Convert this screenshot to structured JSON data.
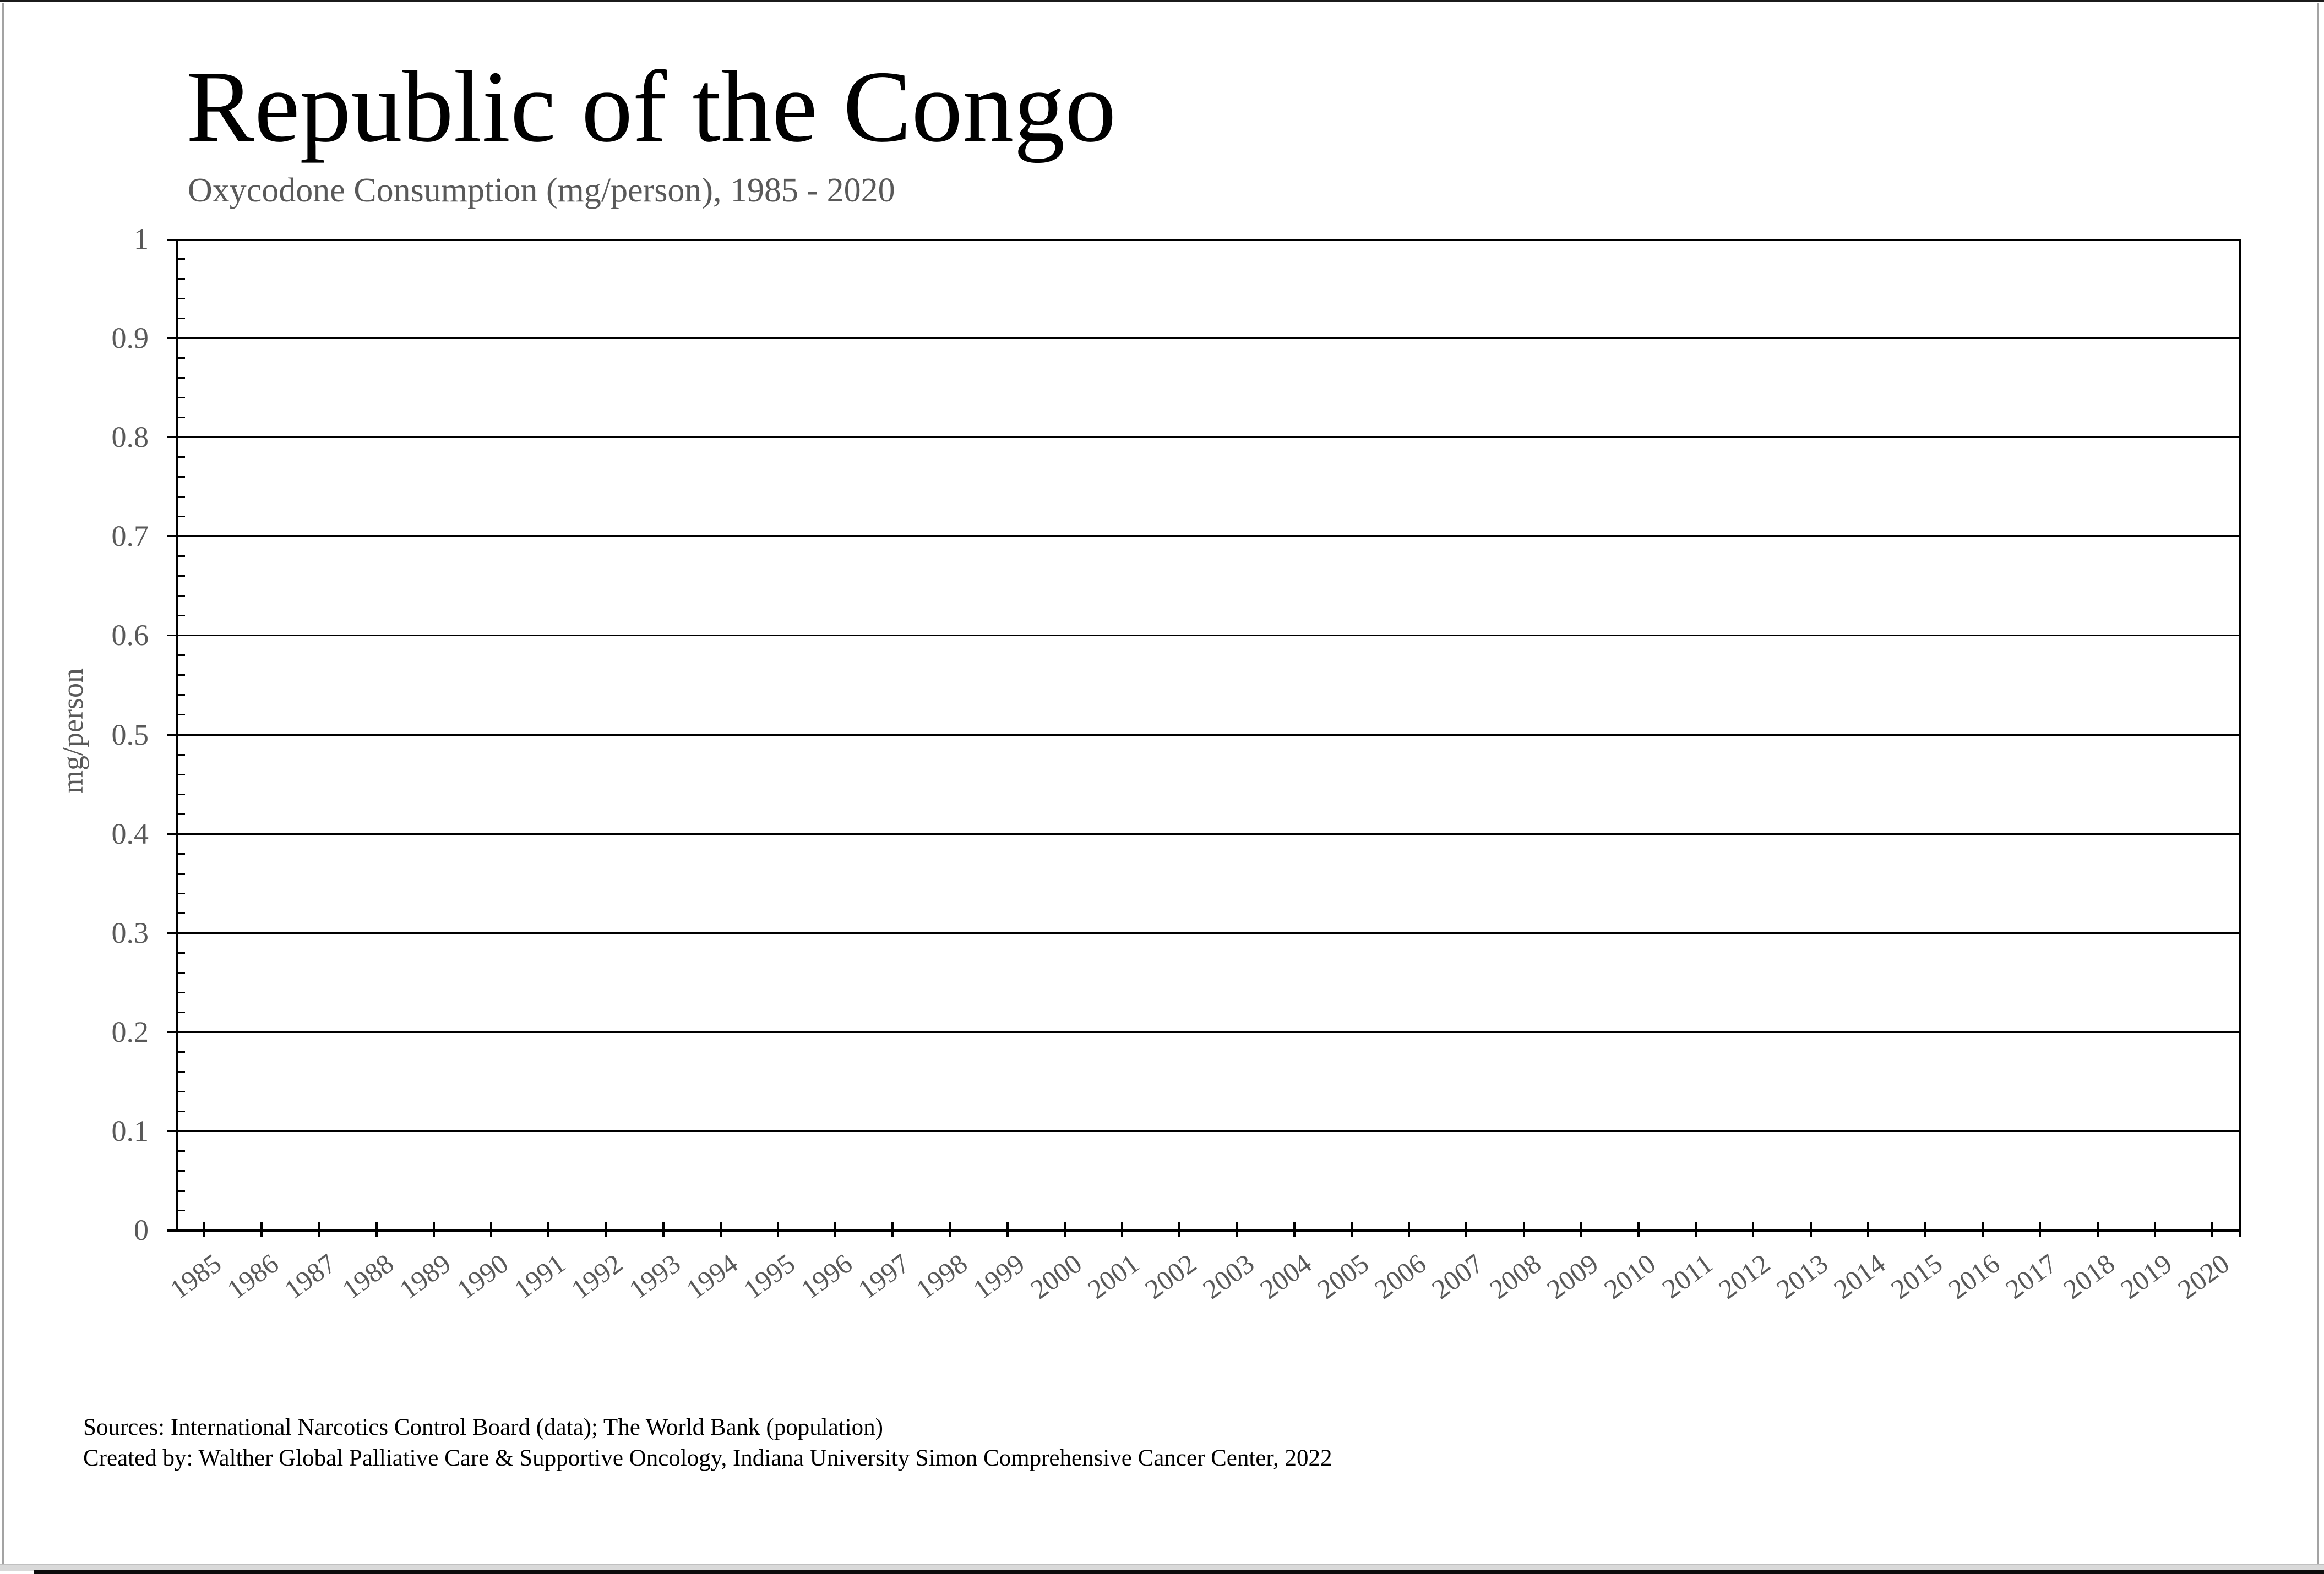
{
  "page": {
    "title": "Republic of the Congo",
    "subtitle": "Oxycodone Consumption (mg/person), 1985 - 2020",
    "source_line1": "Sources: International Narcotics Control Board (data); The World Bank (population)",
    "source_line2": "Created by: Walther Global Palliative Care & Supportive Oncology, Indiana University Simon Comprehensive Cancer Center, 2022"
  },
  "colors": {
    "title_text": "#000000",
    "muted_text": "#595959",
    "axis_line": "#000000",
    "gridline": "#000000",
    "page_background": "#ffffff",
    "frame_gray": "#a3a3a3",
    "bottom_strip": "#d9d9d9",
    "bottom_bar": "#0c0c0c"
  },
  "chart_data": {
    "type": "bar",
    "title": "Republic of the Congo",
    "subtitle": "Oxycodone Consumption (mg/person), 1985 - 2020",
    "xlabel": "",
    "ylabel": "mg/person",
    "ylim": [
      0,
      1
    ],
    "ytick_step": 0.1,
    "ytick_labels_top_to_bottom": [
      "1",
      "0.9",
      "0.8",
      "0.7",
      "0.6",
      "0.5",
      "0.4",
      "0.3",
      "0.2",
      "0.1",
      "0"
    ],
    "minor_ytick_step": 0.02,
    "grid": "horizontal-major-on",
    "legend": "none",
    "categories": [
      "1985",
      "1986",
      "1987",
      "1988",
      "1989",
      "1990",
      "1991",
      "1992",
      "1993",
      "1994",
      "1995",
      "1996",
      "1997",
      "1998",
      "1999",
      "2000",
      "2001",
      "2002",
      "2003",
      "2004",
      "2005",
      "2006",
      "2007",
      "2008",
      "2009",
      "2010",
      "2011",
      "2012",
      "2013",
      "2014",
      "2015",
      "2016",
      "2017",
      "2018",
      "2019",
      "2020"
    ],
    "values": [
      0,
      0,
      0,
      0,
      0,
      0,
      0,
      0,
      0,
      0,
      0,
      0,
      0,
      0,
      0,
      0,
      0,
      0,
      0,
      0,
      0,
      0,
      0,
      0,
      0,
      0,
      0,
      0,
      0,
      0,
      0,
      0,
      0,
      0,
      0,
      0
    ]
  }
}
